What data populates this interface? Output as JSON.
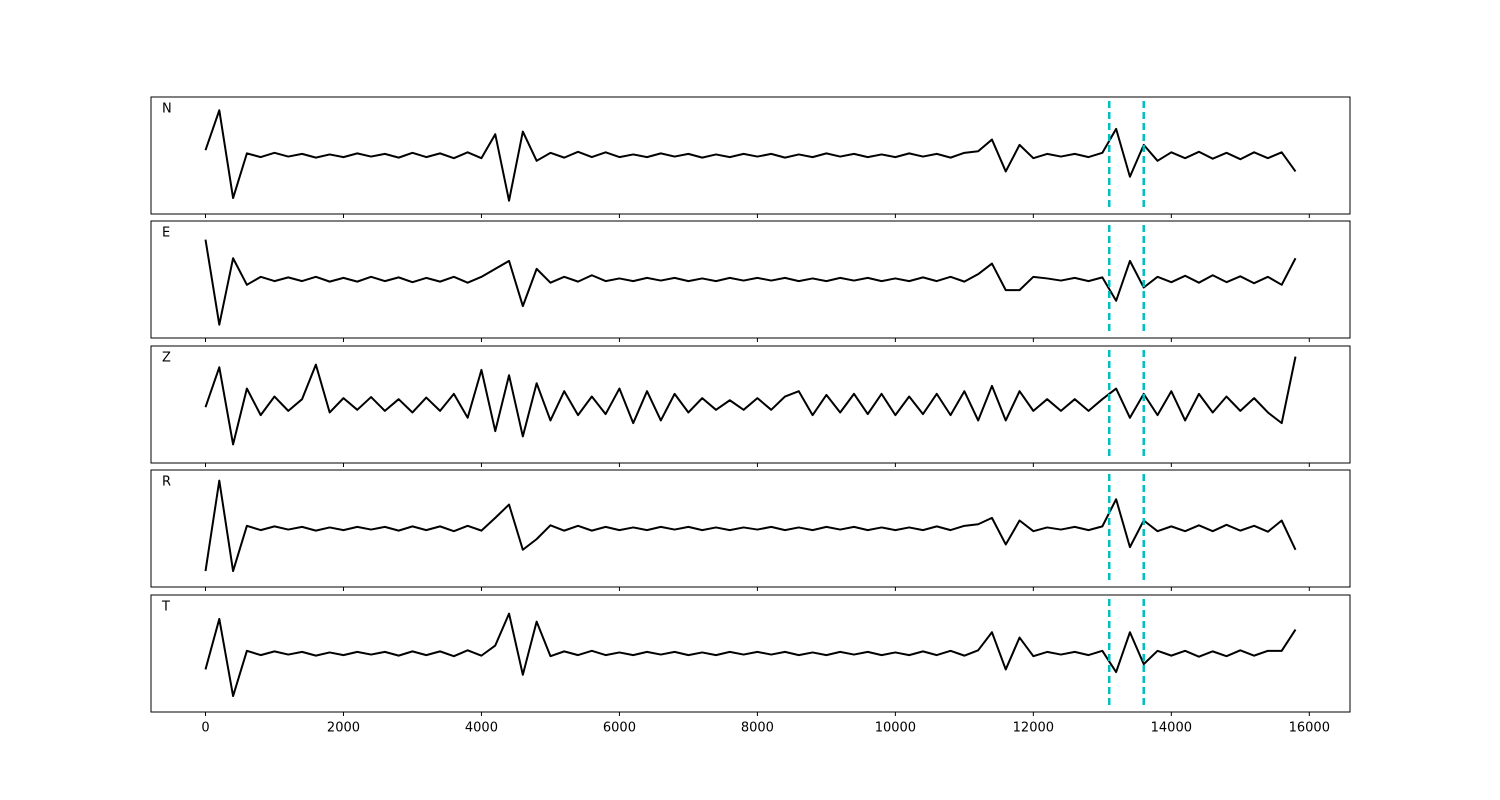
{
  "chart_data": {
    "type": "line",
    "layout": "stacked",
    "x": [
      0,
      200,
      400,
      600,
      800,
      1000,
      1200,
      1400,
      1600,
      1800,
      2000,
      2200,
      2400,
      2600,
      2800,
      3000,
      3200,
      3400,
      3600,
      3800,
      4000,
      4200,
      4400,
      4600,
      4800,
      5000,
      5200,
      5400,
      5600,
      5800,
      6000,
      6200,
      6400,
      6600,
      6800,
      7000,
      7200,
      7400,
      7600,
      7800,
      8000,
      8200,
      8400,
      8600,
      8800,
      9000,
      9200,
      9400,
      9600,
      9800,
      10000,
      10200,
      10400,
      10600,
      10800,
      11000,
      11200,
      11400,
      11600,
      11800,
      12000,
      12200,
      12400,
      12600,
      12800,
      13000,
      13200,
      13400,
      13600,
      13800,
      14000,
      14200,
      14400,
      14600,
      14800,
      15000,
      15200,
      15400,
      15600,
      15800
    ],
    "series": [
      {
        "name": "N",
        "color": "#000000",
        "values": [
          0.1,
          0.85,
          -0.8,
          0.04,
          -0.03,
          0.05,
          -0.02,
          0.03,
          -0.04,
          0.02,
          -0.03,
          0.04,
          -0.02,
          0.03,
          -0.04,
          0.05,
          -0.03,
          0.04,
          -0.05,
          0.06,
          -0.05,
          0.4,
          -0.85,
          0.45,
          -0.1,
          0.05,
          -0.04,
          0.07,
          -0.03,
          0.06,
          -0.03,
          0.02,
          -0.03,
          0.04,
          -0.02,
          0.03,
          -0.04,
          0.02,
          -0.03,
          0.03,
          -0.02,
          0.03,
          -0.04,
          0.02,
          -0.03,
          0.04,
          -0.02,
          0.03,
          -0.03,
          0.02,
          -0.03,
          0.04,
          -0.02,
          0.03,
          -0.04,
          0.05,
          0.08,
          0.3,
          -0.3,
          0.2,
          -0.05,
          0.03,
          -0.02,
          0.03,
          -0.03,
          0.05,
          0.5,
          -0.4,
          0.2,
          -0.1,
          0.06,
          -0.05,
          0.07,
          -0.06,
          0.05,
          -0.07,
          0.06,
          -0.05,
          0.06,
          -0.3
        ]
      },
      {
        "name": "E",
        "color": "#000000",
        "values": [
          0.75,
          -0.85,
          0.4,
          -0.1,
          0.05,
          -0.03,
          0.04,
          -0.03,
          0.05,
          -0.04,
          0.03,
          -0.04,
          0.05,
          -0.03,
          0.04,
          -0.05,
          0.03,
          -0.04,
          0.05,
          -0.06,
          0.05,
          0.2,
          0.35,
          -0.5,
          0.2,
          -0.06,
          0.05,
          -0.04,
          0.08,
          -0.03,
          0.02,
          -0.03,
          0.03,
          -0.02,
          0.03,
          -0.03,
          0.02,
          -0.03,
          0.03,
          -0.02,
          0.03,
          -0.02,
          0.03,
          -0.03,
          0.02,
          -0.03,
          0.03,
          -0.02,
          0.03,
          -0.03,
          0.02,
          -0.03,
          0.04,
          -0.03,
          0.05,
          -0.04,
          0.1,
          0.3,
          -0.2,
          -0.2,
          0.05,
          0.02,
          -0.02,
          0.03,
          -0.03,
          0.04,
          -0.4,
          0.35,
          -0.15,
          0.05,
          -0.05,
          0.07,
          -0.06,
          0.08,
          -0.05,
          0.06,
          -0.07,
          0.05,
          -0.1,
          0.4
        ]
      },
      {
        "name": "Z",
        "color": "#000000",
        "values": [
          -0.05,
          0.7,
          -0.75,
          0.3,
          -0.2,
          0.15,
          -0.12,
          0.1,
          0.75,
          -0.15,
          0.12,
          -0.1,
          0.14,
          -0.12,
          0.1,
          -0.15,
          0.13,
          -0.12,
          0.2,
          -0.25,
          0.65,
          -0.5,
          0.55,
          -0.6,
          0.4,
          -0.3,
          0.25,
          -0.2,
          0.15,
          -0.18,
          0.3,
          -0.35,
          0.25,
          -0.3,
          0.2,
          -0.15,
          0.12,
          -0.1,
          0.08,
          -0.1,
          0.12,
          -0.1,
          0.15,
          0.25,
          -0.2,
          0.18,
          -0.15,
          0.2,
          -0.18,
          0.2,
          -0.2,
          0.15,
          -0.18,
          0.2,
          -0.2,
          0.25,
          -0.3,
          0.35,
          -0.3,
          0.25,
          -0.12,
          0.1,
          -0.12,
          0.1,
          -0.12,
          0.1,
          0.3,
          -0.25,
          0.2,
          -0.2,
          0.25,
          -0.3,
          0.2,
          -0.15,
          0.15,
          -0.12,
          0.12,
          -0.15,
          -0.35,
          0.9
        ]
      },
      {
        "name": "R",
        "color": "#000000",
        "values": [
          -0.8,
          0.9,
          -0.8,
          0.05,
          -0.03,
          0.04,
          -0.02,
          0.03,
          -0.04,
          0.02,
          -0.03,
          0.03,
          -0.02,
          0.03,
          -0.04,
          0.04,
          -0.03,
          0.04,
          -0.05,
          0.05,
          -0.04,
          0.2,
          0.45,
          -0.4,
          -0.2,
          0.06,
          -0.04,
          0.05,
          -0.04,
          0.03,
          -0.03,
          0.02,
          -0.03,
          0.03,
          -0.02,
          0.03,
          -0.03,
          0.02,
          -0.03,
          0.02,
          -0.02,
          0.03,
          -0.03,
          0.02,
          -0.03,
          0.03,
          -0.02,
          0.03,
          -0.03,
          0.02,
          -0.03,
          0.02,
          -0.03,
          0.04,
          -0.03,
          0.05,
          0.08,
          0.2,
          -0.3,
          0.15,
          -0.05,
          0.02,
          -0.02,
          0.03,
          -0.03,
          0.04,
          0.55,
          -0.35,
          0.15,
          -0.05,
          0.04,
          -0.05,
          0.06,
          -0.05,
          0.07,
          -0.04,
          0.05,
          -0.06,
          0.15,
          -0.4
        ]
      },
      {
        "name": "T",
        "color": "#000000",
        "values": [
          -0.3,
          0.65,
          -0.8,
          0.05,
          -0.03,
          0.04,
          -0.02,
          0.03,
          -0.04,
          0.02,
          -0.03,
          0.03,
          -0.02,
          0.03,
          -0.04,
          0.04,
          -0.03,
          0.04,
          -0.05,
          0.06,
          -0.04,
          0.15,
          0.75,
          -0.4,
          0.6,
          -0.05,
          0.04,
          -0.03,
          0.05,
          -0.03,
          0.02,
          -0.03,
          0.03,
          -0.02,
          0.03,
          -0.03,
          0.02,
          -0.03,
          0.03,
          -0.02,
          0.03,
          -0.02,
          0.03,
          -0.03,
          0.02,
          -0.03,
          0.03,
          -0.02,
          0.03,
          -0.03,
          0.02,
          -0.03,
          0.04,
          -0.03,
          0.05,
          -0.04,
          0.06,
          0.4,
          -0.3,
          0.3,
          -0.05,
          0.03,
          -0.02,
          0.03,
          -0.03,
          0.05,
          -0.35,
          0.4,
          -0.2,
          0.05,
          -0.04,
          0.05,
          -0.06,
          0.04,
          -0.05,
          0.06,
          -0.04,
          0.05,
          0.05,
          0.45
        ]
      }
    ],
    "xlim": [
      -790,
      16590
    ],
    "xticks": [
      0,
      2000,
      4000,
      6000,
      8000,
      10000,
      12000,
      14000,
      16000
    ],
    "ylim": [
      -1.1,
      1.1
    ],
    "vlines": [
      13100,
      13600
    ],
    "vline_color": "#00bfbf",
    "grid": false
  }
}
